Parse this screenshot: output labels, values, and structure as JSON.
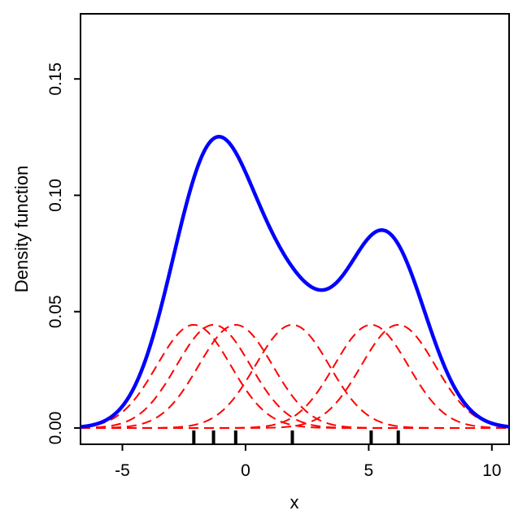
{
  "chart_data": {
    "type": "line",
    "title": "",
    "xlabel": "x",
    "ylabel": "Density function",
    "xlim": [
      -6.7,
      10.7
    ],
    "ylim": [
      -0.007,
      0.178
    ],
    "xticks": [
      -5,
      0,
      5,
      10
    ],
    "xtick_labels": [
      "-5",
      "0",
      "5",
      "10"
    ],
    "yticks": [
      0.0,
      0.05,
      0.1,
      0.15
    ],
    "ytick_labels": [
      "0.00",
      "0.05",
      "0.10",
      "0.15"
    ],
    "grid": false,
    "legend": "none",
    "bandwidth": 1.5,
    "observations": [
      -2.1,
      -1.3,
      -0.4,
      1.9,
      5.1,
      6.2
    ],
    "series": [
      {
        "role": "kernel density estimate",
        "style": "solid",
        "color": "#0000ff",
        "x": [
          -6.7,
          -6,
          -5,
          -4,
          -3,
          -2,
          -1,
          0,
          1,
          2,
          3,
          4,
          5,
          5.5,
          6,
          7,
          8,
          9,
          10,
          10.7
        ],
        "y": [
          0.002,
          0.005,
          0.015,
          0.038,
          0.075,
          0.11,
          0.125,
          0.114,
          0.088,
          0.066,
          0.059,
          0.069,
          0.083,
          0.085,
          0.08,
          0.056,
          0.028,
          0.01,
          0.003,
          0.001
        ]
      },
      {
        "role": "individual kernels",
        "style": "dashed",
        "color": "#ff0000",
        "peak": 0.0443,
        "centers": [
          -2.1,
          -1.3,
          -0.4,
          1.9,
          5.1,
          6.2
        ]
      }
    ]
  }
}
